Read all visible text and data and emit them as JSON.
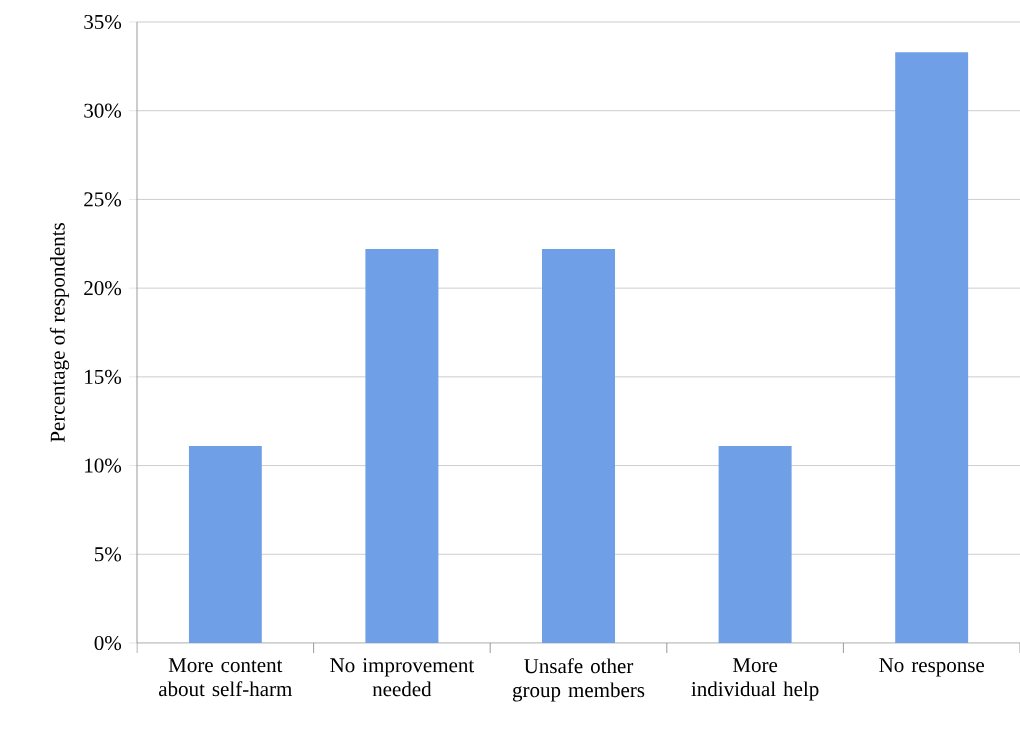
{
  "chart_data": {
    "type": "bar",
    "ylabel": "Percentage of respondents",
    "categories": [
      "More content about self-harm",
      "No improvement needed",
      "Unsafe other group members",
      "More individual help",
      "No response"
    ],
    "values": [
      11.1,
      22.2,
      22.2,
      11.1,
      33.3
    ],
    "color": "#6f9fe6",
    "ylim": [
      0,
      35
    ],
    "yticks": [
      {
        "value": 0,
        "label": "0%"
      },
      {
        "value": 5,
        "label": "5%"
      },
      {
        "value": 10,
        "label": "10%"
      },
      {
        "value": 15,
        "label": "15%"
      },
      {
        "value": 20,
        "label": "20%"
      },
      {
        "value": 25,
        "label": "25%"
      },
      {
        "value": 30,
        "label": "30%"
      },
      {
        "value": 35,
        "label": "35%"
      }
    ],
    "grid": "y"
  }
}
